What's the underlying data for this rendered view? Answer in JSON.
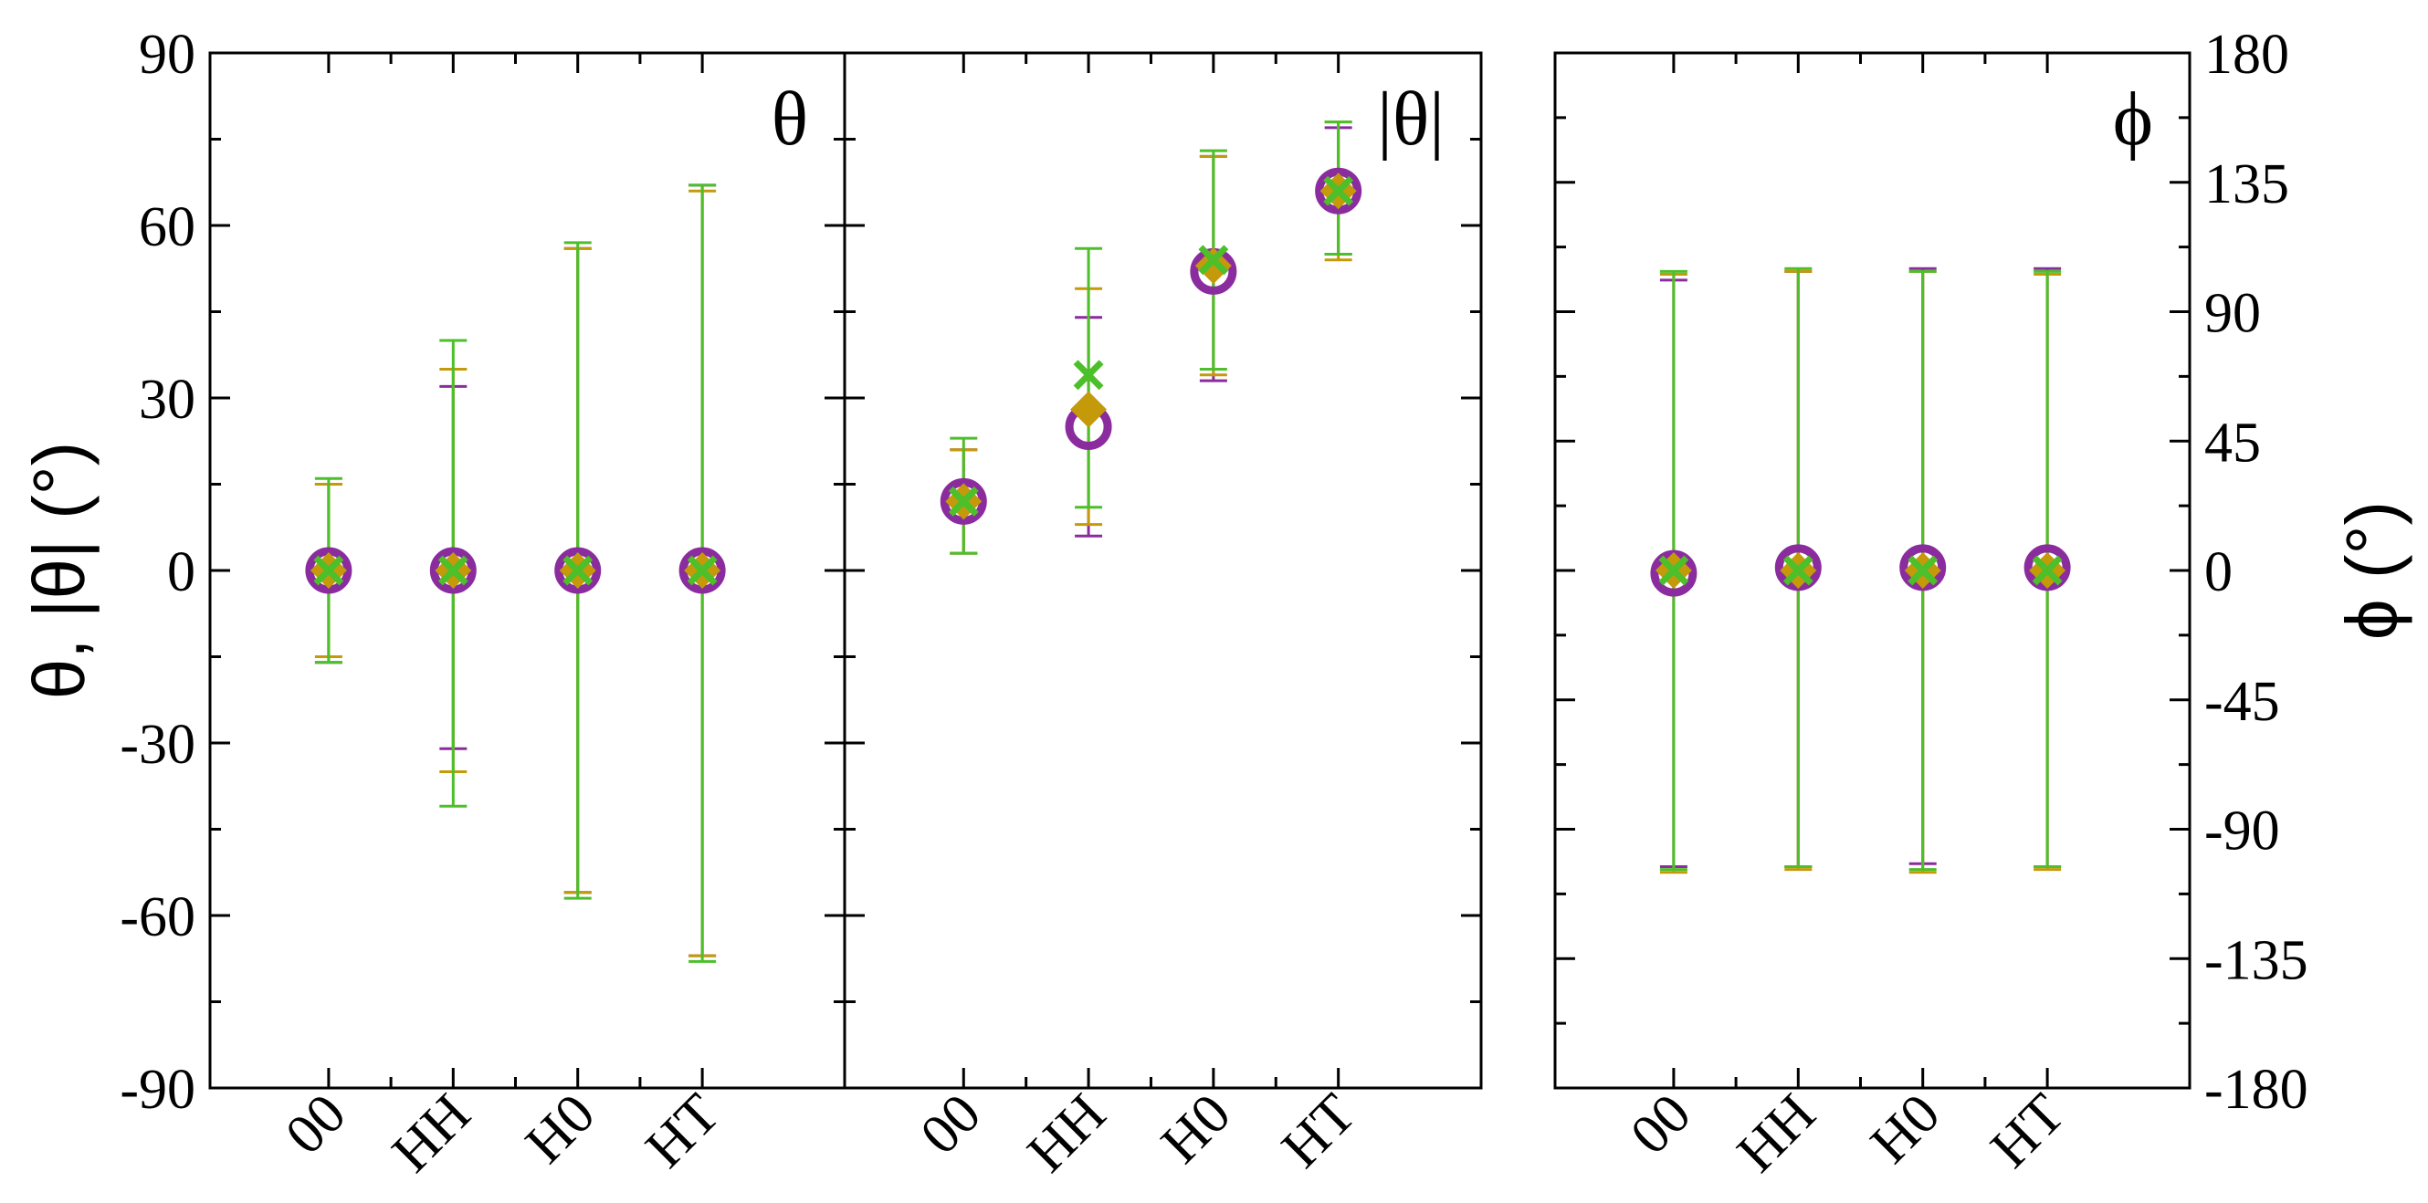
{
  "chart_data": {
    "type": "scatter",
    "y_label_left": "θ, |θ| (°)",
    "y_label_right": "ϕ (°)",
    "categories": [
      "00",
      "HH",
      "H0",
      "HT"
    ],
    "colors": {
      "purple": "#8B2C9E",
      "gold": "#C49A0A",
      "green": "#4CBF2A"
    },
    "panels": [
      {
        "title": "θ",
        "ylim": [
          -90,
          90
        ],
        "yticks": [
          -90,
          -60,
          -30,
          0,
          30,
          60,
          90
        ],
        "yticks_side": "left",
        "series": [
          {
            "marker": "circle",
            "color": "purple",
            "values": [
              0,
              0,
              0,
              0
            ],
            "lower": [
              -16,
              -31,
              -56,
              -67
            ],
            "upper": [
              15,
              32,
              56,
              67
            ]
          },
          {
            "marker": "diamond",
            "color": "gold",
            "values": [
              0,
              0,
              0,
              0
            ],
            "lower": [
              -15,
              -35,
              -56,
              -67
            ],
            "upper": [
              15,
              35,
              56,
              66
            ]
          },
          {
            "marker": "cross",
            "color": "green",
            "values": [
              0,
              0,
              0,
              0
            ],
            "lower": [
              -16,
              -41,
              -57,
              -68
            ],
            "upper": [
              16,
              40,
              57,
              67
            ]
          }
        ]
      },
      {
        "title": "|θ|",
        "ylim": [
          -90,
          90
        ],
        "yticks": [
          -90,
          -60,
          -30,
          0,
          30,
          60,
          90
        ],
        "yticks_side": "none",
        "series": [
          {
            "marker": "circle",
            "color": "purple",
            "values": [
              12,
              25,
              52,
              66
            ],
            "lower": [
              3,
              6,
              33,
              55
            ],
            "upper": [
              21,
              44,
              72,
              77
            ]
          },
          {
            "marker": "diamond",
            "color": "gold",
            "values": [
              12,
              28,
              53,
              66
            ],
            "lower": [
              3,
              8,
              34,
              54
            ],
            "upper": [
              21,
              49,
              72,
              78
            ]
          },
          {
            "marker": "cross",
            "color": "green",
            "values": [
              12,
              34,
              54,
              66
            ],
            "lower": [
              3,
              11,
              35,
              55
            ],
            "upper": [
              23,
              56,
              73,
              78
            ]
          }
        ]
      },
      {
        "title": "ϕ",
        "ylim": [
          -180,
          180
        ],
        "yticks": [
          -180,
          -135,
          -90,
          -45,
          0,
          45,
          90,
          135,
          180
        ],
        "yticks_side": "right",
        "series": [
          {
            "marker": "circle",
            "color": "purple",
            "values": [
              -1,
              1,
              1,
              1
            ],
            "lower": [
              -103,
              -103,
              -102,
              -103
            ],
            "upper": [
              101,
              104,
              105,
              105
            ]
          },
          {
            "marker": "diamond",
            "color": "gold",
            "values": [
              0,
              0,
              0,
              0
            ],
            "lower": [
              -105,
              -104,
              -105,
              -104
            ],
            "upper": [
              103,
              104,
              104,
              103
            ]
          },
          {
            "marker": "cross",
            "color": "green",
            "values": [
              0,
              0,
              0,
              0
            ],
            "lower": [
              -104,
              -103,
              -104,
              -103
            ],
            "upper": [
              104,
              105,
              104,
              104
            ]
          }
        ]
      }
    ]
  }
}
